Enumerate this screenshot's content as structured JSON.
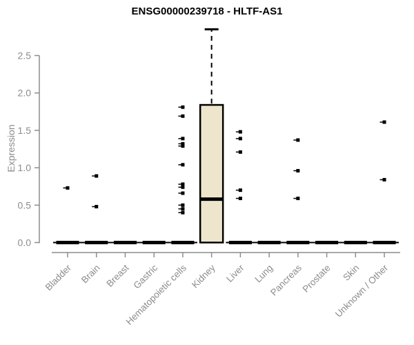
{
  "page": {
    "background": "#ffffff"
  },
  "chart_data": {
    "type": "boxplot",
    "title": "ENSG00000239718 - HLTF-AS1",
    "ylabel": "Expression",
    "xlabel": "",
    "grid": false,
    "legend": "none",
    "ylim": [
      -0.07,
      2.9
    ],
    "yticks": [
      "0.0",
      "0.5",
      "1.0",
      "1.5",
      "2.0",
      "2.5"
    ],
    "categories": [
      "Bladder",
      "Brain",
      "Breast",
      "Gastric",
      "Hematopoietic cells",
      "Kidney",
      "Liver",
      "Lung",
      "Pancreas",
      "Prostate",
      "Skin",
      "Unknown / Other"
    ],
    "series": [
      {
        "category": "Bladder",
        "low": 0,
        "q1": 0,
        "median": 0,
        "q3": 0,
        "high": 0,
        "outliers": [
          0.73
        ]
      },
      {
        "category": "Brain",
        "low": 0,
        "q1": 0,
        "median": 0,
        "q3": 0,
        "high": 0,
        "outliers": [
          0.89,
          0.48
        ]
      },
      {
        "category": "Breast",
        "low": 0,
        "q1": 0,
        "median": 0,
        "q3": 0,
        "high": 0,
        "outliers": []
      },
      {
        "category": "Gastric",
        "low": 0,
        "q1": 0,
        "median": 0,
        "q3": 0,
        "high": 0,
        "outliers": []
      },
      {
        "category": "Hematopoietic cells",
        "low": 0,
        "q1": 0,
        "median": 0,
        "q3": 0,
        "high": 0,
        "outliers": [
          1.81,
          1.69,
          1.39,
          1.32,
          1.29,
          1.04,
          0.78,
          0.74,
          0.66,
          0.5,
          0.45,
          0.4
        ]
      },
      {
        "category": "Kidney",
        "low": 0,
        "q1": 0,
        "median": 0.58,
        "q3": 1.84,
        "high": 2.85,
        "outliers": []
      },
      {
        "category": "Liver",
        "low": 0,
        "q1": 0,
        "median": 0,
        "q3": 0,
        "high": 0,
        "outliers": [
          1.48,
          1.39,
          1.21,
          0.7,
          0.59
        ]
      },
      {
        "category": "Lung",
        "low": 0,
        "q1": 0,
        "median": 0,
        "q3": 0,
        "high": 0,
        "outliers": []
      },
      {
        "category": "Pancreas",
        "low": 0,
        "q1": 0,
        "median": 0,
        "q3": 0,
        "high": 0,
        "outliers": [
          1.37,
          0.96,
          0.59
        ]
      },
      {
        "category": "Prostate",
        "low": 0,
        "q1": 0,
        "median": 0,
        "q3": 0,
        "high": 0,
        "outliers": []
      },
      {
        "category": "Skin",
        "low": 0,
        "q1": 0,
        "median": 0,
        "q3": 0,
        "high": 0,
        "outliers": []
      },
      {
        "category": "Unknown / Other",
        "low": 0,
        "q1": 0,
        "median": 0,
        "q3": 0,
        "high": 0,
        "outliers": [
          1.61,
          0.84
        ]
      }
    ],
    "colors": {
      "box_fill": "#EDE6CC",
      "box_border": "#000000",
      "median": "#000000",
      "outlier": "#000000",
      "axis": "#8C8C8C",
      "label": "#8C8C8C",
      "title": "#000000"
    }
  }
}
